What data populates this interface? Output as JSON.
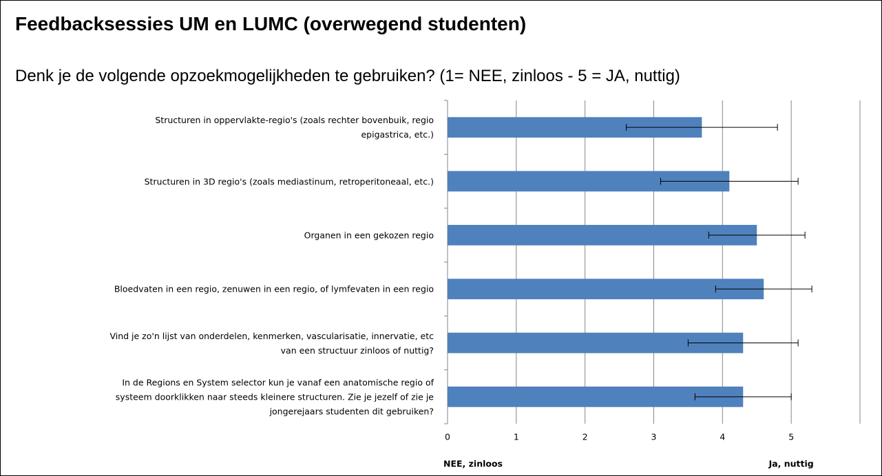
{
  "chart_data": {
    "type": "bar",
    "orientation": "horizontal",
    "title": "Feedbacksessies UM en LUMC (overwegend studenten)",
    "subtitle": "Denk je de volgende opzoekmogelijkheden te gebruiken? (1= NEE, zinloos - 5 = JA, nuttig)",
    "categories": [
      "Structuren in oppervlakte-regio's (zoals rechter bovenbuik, regio\nepigastrica, etc.)",
      "Structuren in 3D regio's (zoals mediastinum, retroperitoneaal, etc.)",
      "Organen in een gekozen regio",
      "Bloedvaten in een regio, zenuwen in een regio, of lymfevaten in een regio",
      "Vind je zo'n lijst van onderdelen, kenmerken, vascularisatie, innervatie, etc\nvan een structuur zinloos of nuttig?",
      "In de Regions en System selector kun je vanaf een anatomische regio of\nsysteem doorklikken naar steeds kleinere structuren. Zie je jezelf of zie je\njongerejaars studenten dit gebruiken?"
    ],
    "values": [
      3.7,
      4.1,
      4.5,
      4.6,
      4.3,
      4.3
    ],
    "errors": [
      1.1,
      1.0,
      0.7,
      0.7,
      0.8,
      0.7
    ],
    "color": "#4f81bd",
    "xlim": [
      0,
      6
    ],
    "xticks": [
      0,
      1,
      2,
      3,
      4,
      5
    ],
    "grid": true,
    "x_label_left": "NEE, zinloos",
    "x_label_right": "Ja, nuttig"
  }
}
